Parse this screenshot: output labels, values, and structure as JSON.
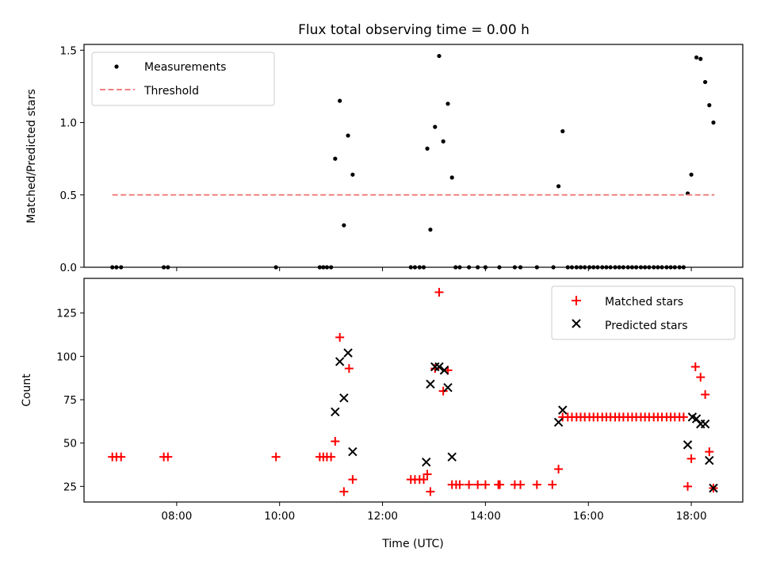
{
  "chart_data": [
    {
      "type": "scatter",
      "title": "Flux total observing time = 0.00 h",
      "xlabel": "",
      "ylabel": "Matched/Predicted stars",
      "ylim": [
        0,
        1.54
      ],
      "xlim": [
        6.2,
        19.0
      ],
      "yticks": [
        0.0,
        0.5,
        1.0,
        1.5
      ],
      "ytick_labels": [
        "0.0",
        "0.5",
        "1.0",
        "1.5"
      ],
      "xticks": [
        8,
        10,
        12,
        14,
        16,
        18
      ],
      "legend_position": "top-left",
      "colors": {
        "measurements": "#000000",
        "threshold": "#f08080"
      },
      "series": [
        {
          "name": "Measurements",
          "style": "dot",
          "x": [
            6.75,
            6.83,
            6.92,
            7.75,
            7.83,
            9.93,
            10.78,
            10.85,
            10.92,
            11.0,
            11.08,
            11.17,
            11.25,
            11.33,
            11.42,
            12.55,
            12.63,
            12.72,
            12.8,
            12.87,
            12.93,
            13.02,
            13.1,
            13.18,
            13.27,
            13.35,
            13.42,
            13.5,
            13.68,
            13.85,
            14.0,
            14.27,
            14.57,
            14.68,
            15.0,
            15.32,
            15.42,
            15.5,
            15.6,
            15.68,
            15.77,
            15.85,
            15.93,
            16.02,
            16.1,
            16.18,
            16.27,
            16.35,
            16.43,
            16.52,
            16.6,
            16.68,
            16.77,
            16.85,
            16.93,
            17.02,
            17.1,
            17.18,
            17.27,
            17.35,
            17.43,
            17.52,
            17.6,
            17.68,
            17.77,
            17.85,
            17.93,
            18.0,
            18.1,
            18.18,
            18.27,
            18.35,
            18.43
          ],
          "y": [
            0,
            0,
            0,
            0,
            0,
            0,
            0,
            0,
            0,
            0,
            0.75,
            1.15,
            0.29,
            0.91,
            0.64,
            0,
            0,
            0,
            0,
            0.82,
            0.26,
            0.97,
            1.46,
            0.87,
            1.13,
            0.62,
            0,
            0,
            0,
            0,
            0,
            0,
            0,
            0,
            0,
            0,
            0.56,
            0.94,
            0,
            0,
            0,
            0,
            0,
            0,
            0,
            0,
            0,
            0,
            0,
            0,
            0,
            0,
            0,
            0,
            0,
            0,
            0,
            0,
            0,
            0,
            0,
            0,
            0,
            0,
            0,
            0,
            0.51,
            0.64,
            1.45,
            1.44,
            1.28,
            1.12,
            1.0
          ]
        },
        {
          "name": "Threshold",
          "style": "dashed-line",
          "x": [
            6.75,
            18.45
          ],
          "y": [
            0.5,
            0.5
          ]
        }
      ]
    },
    {
      "type": "scatter",
      "title": "",
      "xlabel": "Time (UTC)",
      "ylabel": "Count",
      "ylim": [
        16,
        145
      ],
      "xlim": [
        6.2,
        19.0
      ],
      "yticks": [
        25,
        50,
        75,
        100,
        125
      ],
      "ytick_labels": [
        "25",
        "50",
        "75",
        "100",
        "125"
      ],
      "xticks": [
        8,
        10,
        12,
        14,
        16,
        18
      ],
      "xtick_labels": [
        "08:00",
        "10:00",
        "12:00",
        "14:00",
        "16:00",
        "18:00"
      ],
      "legend_position": "top-right",
      "colors": {
        "matched": "#ff0000",
        "predicted": "#000000"
      },
      "series": [
        {
          "name": "Matched stars",
          "style": "plus",
          "x": [
            6.75,
            6.83,
            6.92,
            7.75,
            7.83,
            9.93,
            10.78,
            10.85,
            10.92,
            11.0,
            11.08,
            11.17,
            11.25,
            11.35,
            11.42,
            12.55,
            12.63,
            12.72,
            12.8,
            12.87,
            12.93,
            13.02,
            13.1,
            13.18,
            13.27,
            13.35,
            13.43,
            13.5,
            13.68,
            13.85,
            14.0,
            14.25,
            14.28,
            14.57,
            14.68,
            15.0,
            15.3,
            15.42,
            15.5,
            15.6,
            15.68,
            15.77,
            15.85,
            15.93,
            16.02,
            16.1,
            16.18,
            16.27,
            16.35,
            16.43,
            16.52,
            16.6,
            16.68,
            16.77,
            16.85,
            16.93,
            17.02,
            17.1,
            17.18,
            17.27,
            17.35,
            17.43,
            17.52,
            17.6,
            17.68,
            17.77,
            17.85,
            17.93,
            18.0,
            18.08,
            18.18,
            18.27,
            18.35,
            18.43
          ],
          "y": [
            42,
            42,
            42,
            42,
            42,
            42,
            42,
            42,
            42,
            42,
            51,
            111,
            22,
            93,
            29,
            29,
            29,
            29,
            29,
            32,
            22,
            93,
            137,
            80,
            92,
            26,
            26,
            26,
            26,
            26,
            26,
            26,
            26,
            26,
            26,
            26,
            26,
            35,
            65,
            65,
            65,
            65,
            65,
            65,
            65,
            65,
            65,
            65,
            65,
            65,
            65,
            65,
            65,
            65,
            65,
            65,
            65,
            65,
            65,
            65,
            65,
            65,
            65,
            65,
            65,
            65,
            65,
            25,
            41,
            94,
            88,
            78,
            45,
            24
          ]
        },
        {
          "name": "Predicted stars",
          "style": "x",
          "x": [
            11.08,
            11.17,
            11.25,
            11.33,
            11.42,
            12.85,
            12.93,
            13.02,
            13.1,
            13.2,
            13.27,
            13.35,
            15.42,
            15.5,
            17.93,
            18.02,
            18.1,
            18.18,
            18.27,
            18.35,
            18.43
          ],
          "y": [
            68,
            97,
            76,
            102,
            45,
            39,
            84,
            94,
            94,
            92,
            82,
            42,
            62,
            69,
            49,
            65,
            64,
            61,
            61,
            40,
            24
          ]
        }
      ]
    }
  ]
}
